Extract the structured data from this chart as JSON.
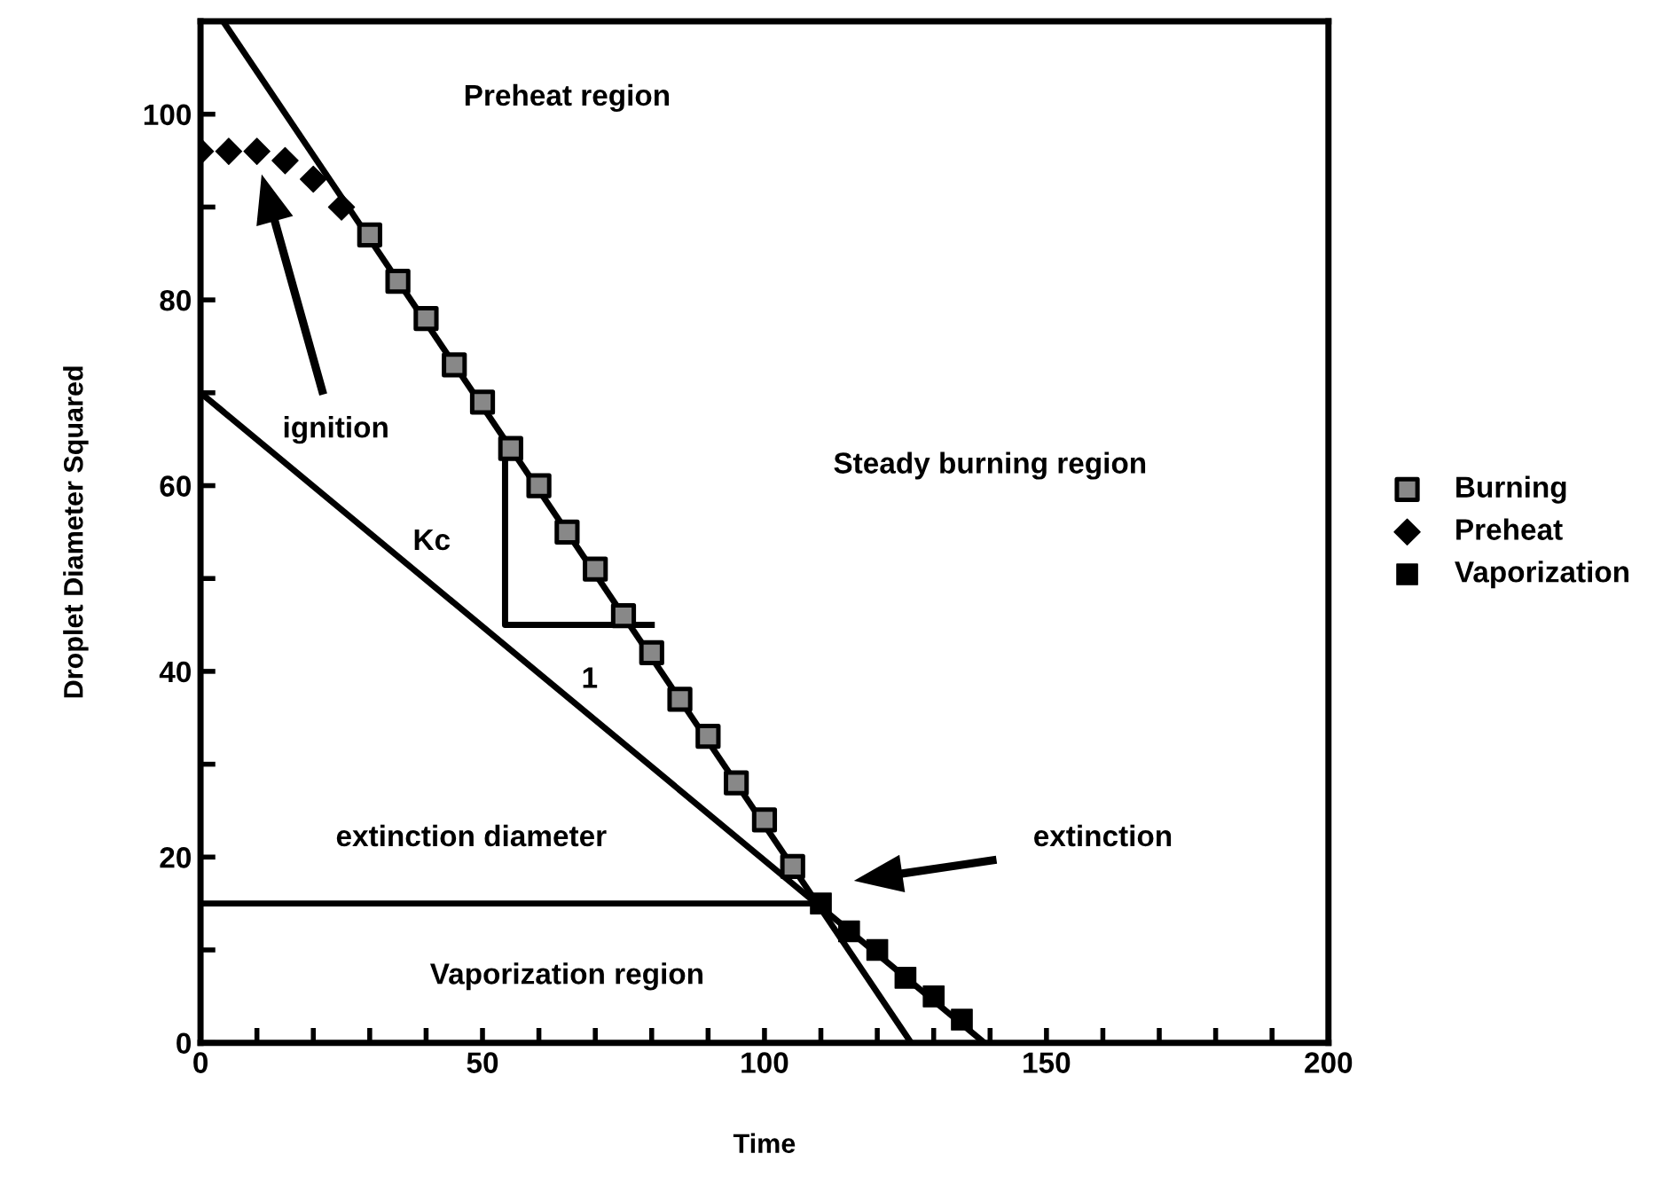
{
  "chart_data": {
    "type": "scatter",
    "xlabel": "Time",
    "ylabel": "Droplet Diameter Squared",
    "xlim": [
      0,
      200
    ],
    "ylim": [
      0,
      110
    ],
    "xticks": [
      0,
      {
        "value": 10,
        "label": null
      },
      {
        "value": 20,
        "label": null
      },
      {
        "value": 30,
        "label": null
      },
      {
        "value": 40,
        "label": null
      },
      50,
      {
        "value": 60,
        "label": null
      },
      {
        "value": 70,
        "label": null
      },
      {
        "value": 80,
        "label": null
      },
      {
        "value": 90,
        "label": null
      },
      100,
      {
        "value": 110,
        "label": null
      },
      {
        "value": 120,
        "label": null
      },
      {
        "value": 130,
        "label": null
      },
      {
        "value": 140,
        "label": null
      },
      150,
      {
        "value": 160,
        "label": null
      },
      {
        "value": 170,
        "label": null
      },
      {
        "value": 180,
        "label": null
      },
      {
        "value": 190,
        "label": null
      },
      200
    ],
    "yticks": [
      0,
      {
        "value": 10,
        "label": null
      },
      20,
      {
        "value": 30,
        "label": null
      },
      40,
      {
        "value": 50,
        "label": null
      },
      60,
      {
        "value": 70,
        "label": null
      },
      80,
      {
        "value": 90,
        "label": null
      },
      100
    ],
    "grid": false,
    "legend": "right",
    "series": [
      {
        "name": "Burning",
        "marker": "square",
        "color": "#888888",
        "x": [
          30,
          35,
          40,
          45,
          50,
          55,
          60,
          65,
          70,
          75,
          80,
          85,
          90,
          95,
          100,
          105
        ],
        "values": [
          87,
          82,
          78,
          73,
          69,
          64,
          60,
          55,
          51,
          46,
          42,
          37,
          33,
          28,
          24,
          19
        ]
      },
      {
        "name": "Preheat",
        "marker": "diamond",
        "color": "#000000",
        "x": [
          0,
          5,
          10,
          15,
          20,
          25
        ],
        "values": [
          96,
          96,
          96,
          95,
          93,
          90
        ]
      },
      {
        "name": "Vaporization",
        "marker": "square",
        "color": "#000000",
        "x": [
          110,
          115,
          120,
          125,
          130,
          135
        ],
        "values": [
          15,
          12,
          10,
          7,
          5,
          2.5
        ]
      },
      {
        "type": "line",
        "color": "#000000",
        "x": [
          4,
          126
        ],
        "values": [
          110,
          0
        ]
      },
      {
        "type": "line",
        "color": "#000000",
        "x": [
          0,
          139
        ],
        "values": [
          70,
          0
        ]
      },
      {
        "type": "line",
        "color": "#000000",
        "x": [
          0,
          110
        ],
        "values": [
          15,
          15
        ]
      },
      {
        "type": "line",
        "color": "#000000",
        "x": [
          54,
          54,
          80
        ],
        "values": [
          64,
          45,
          45
        ]
      }
    ],
    "annotations": [
      "Preheat region",
      "Steady burning region",
      "ignition",
      "Kc",
      "1",
      "extinction diameter",
      "extinction",
      "Vaporization region"
    ]
  }
}
